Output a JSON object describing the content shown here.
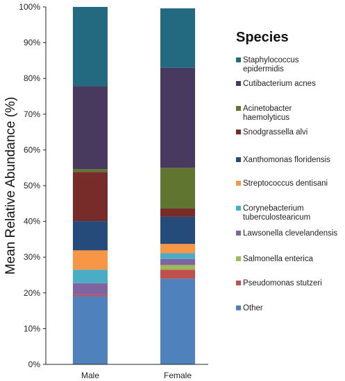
{
  "chart_data": {
    "type": "bar",
    "stacked": true,
    "categories": [
      "Male",
      "Female"
    ],
    "ylabel": "Mean Relative Abundance (%)",
    "xlabel": "",
    "ylim": [
      0,
      100
    ],
    "yticks": [
      "0%",
      "10%",
      "20%",
      "30%",
      "40%",
      "50%",
      "60%",
      "70%",
      "80%",
      "90%",
      "100%"
    ],
    "grid": false,
    "legend": {
      "title": "Species",
      "position": "right"
    },
    "series": [
      {
        "name": "Other",
        "color": "#4f81bd",
        "values": [
          19,
          24
        ]
      },
      {
        "name": "Pseudomonas stutzeri",
        "color": "#c0504d",
        "values": [
          0.4,
          2.5
        ]
      },
      {
        "name": "Salmonella enterica",
        "color": "#9bbb59",
        "values": [
          0,
          1.3
        ]
      },
      {
        "name": "Lawsonella clevelandensis",
        "color": "#8064a2",
        "values": [
          3.3,
          1.7
        ]
      },
      {
        "name": "Corynebacterium tuberculostearicum",
        "color": "#4bacc6",
        "values": [
          3.8,
          1.6
        ]
      },
      {
        "name": "Streptococcus dentisani",
        "color": "#f79646",
        "values": [
          5.4,
          2.6
        ]
      },
      {
        "name": "Xanthomonas floridensis",
        "color": "#254b7a",
        "values": [
          8.2,
          7.6
        ]
      },
      {
        "name": "Snodgrassella alvi",
        "color": "#772c2a",
        "values": [
          13.7,
          2.3
        ]
      },
      {
        "name": "Acinetobacter haemolyticus",
        "color": "#5f7530",
        "values": [
          0.8,
          11.4
        ]
      },
      {
        "name": "Cutibacterium acnes",
        "color": "#473a5e",
        "values": [
          23.2,
          28
        ]
      },
      {
        "name": "Staphylococcus epidermidis",
        "color": "#236a80",
        "values": [
          22.2,
          16.6
        ]
      }
    ],
    "legend_entries": [
      {
        "series": 10,
        "lines": [
          "Staphylococcus",
          "epidermidis"
        ]
      },
      {
        "series": 9,
        "lines": [
          "Cutibacterium acnes"
        ]
      },
      {
        "series": 8,
        "lines": [
          "Acinetobacter",
          "haemolyticus"
        ]
      },
      {
        "series": 7,
        "lines": [
          "Snodgrassella alvi"
        ]
      },
      {
        "series": 6,
        "lines": [
          "Xanthomonas floridensis"
        ]
      },
      {
        "series": 5,
        "lines": [
          "Streptococcus dentisani"
        ]
      },
      {
        "series": 4,
        "lines": [
          "Corynebacterium",
          "tuberculostearicum"
        ]
      },
      {
        "series": 3,
        "lines": [
          "Lawsonella clevelandensis"
        ]
      },
      {
        "series": 2,
        "lines": [
          "Salmonella enterica"
        ]
      },
      {
        "series": 1,
        "lines": [
          "Pseudomonas stutzeri"
        ]
      },
      {
        "series": 0,
        "lines": [
          "Other"
        ]
      }
    ]
  }
}
